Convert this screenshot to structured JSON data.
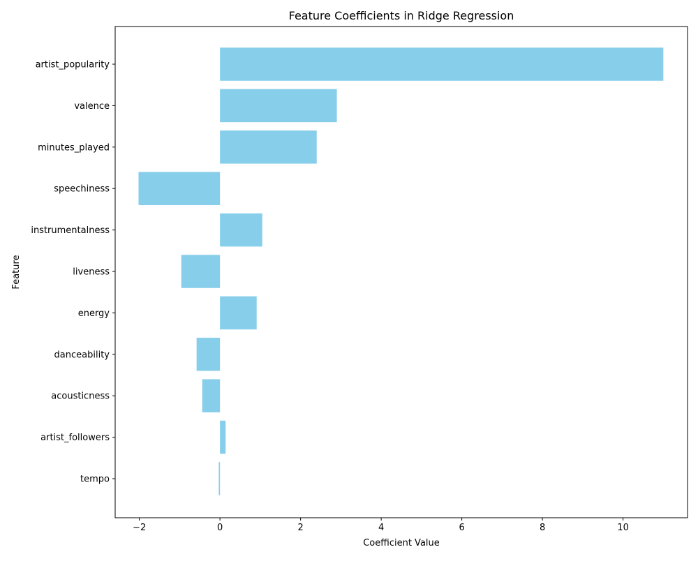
{
  "chart_data": {
    "type": "bar",
    "orientation": "horizontal",
    "title": "Feature Coefficients in Ridge Regression",
    "xlabel": "Coefficient Value",
    "ylabel": "Feature",
    "xlim": [
      -2.6,
      11.6
    ],
    "xticks": [
      -2,
      0,
      2,
      4,
      6,
      8,
      10
    ],
    "xtick_labels": [
      "−2",
      "0",
      "2",
      "4",
      "6",
      "8",
      "10"
    ],
    "grid": false,
    "legend": "none",
    "bar_color": "#87CEEB",
    "categories": [
      "artist_popularity",
      "valence",
      "minutes_played",
      "speechiness",
      "instrumentalness",
      "liveness",
      "energy",
      "danceability",
      "acousticness",
      "artist_followers",
      "tempo"
    ],
    "values": [
      11.0,
      2.9,
      2.4,
      -2.02,
      1.05,
      -0.96,
      0.91,
      -0.58,
      -0.44,
      0.14,
      -0.03
    ]
  }
}
